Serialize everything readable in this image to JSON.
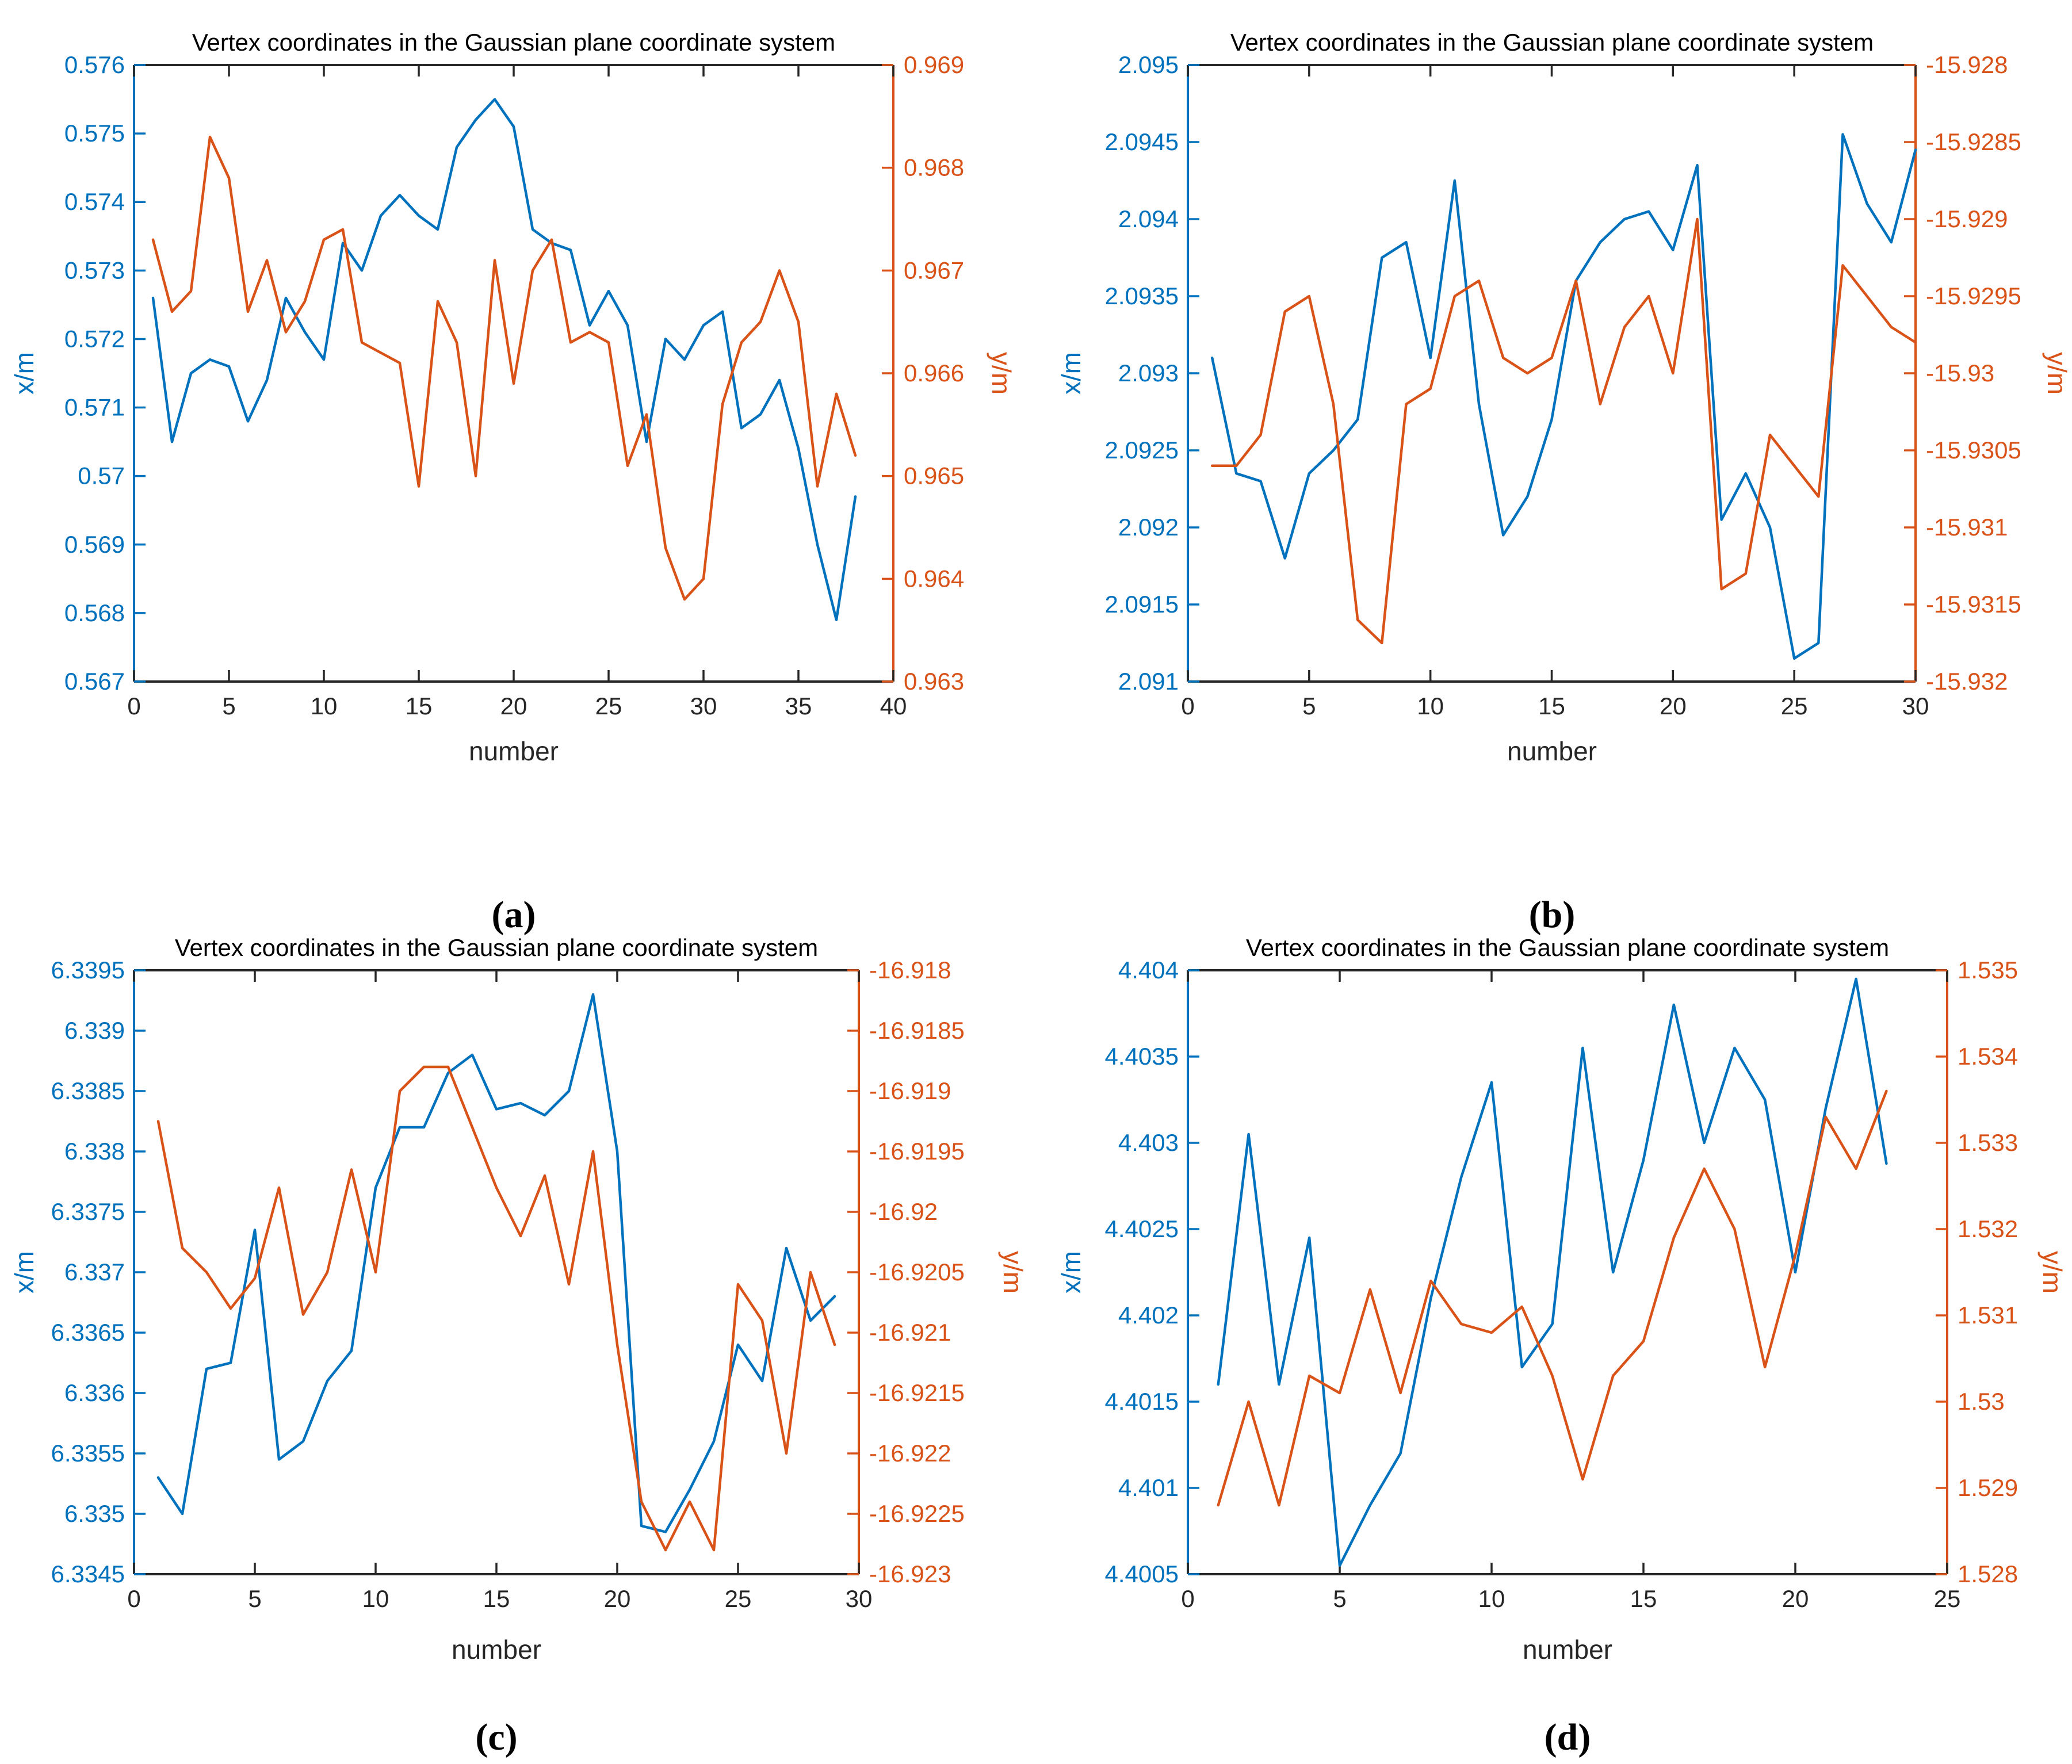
{
  "figure": {
    "colors": {
      "x_series": "#0072BD",
      "y_series": "#D95319",
      "axis": "#262626"
    },
    "shared_title": "Vertex coordinates in the Gaussian plane coordinate system"
  },
  "chart_data": [
    {
      "id": "a",
      "panel_label": "(a)",
      "type": "line",
      "title": "Vertex coordinates in the Gaussian plane coordinate system",
      "xlabel": "number",
      "ylabel_left": "x/m",
      "ylabel_right": "y/m",
      "legend": "none",
      "grid": false,
      "x_range": [
        0,
        40
      ],
      "xticks": [
        "0",
        "5",
        "10",
        "15",
        "20",
        "25",
        "30",
        "35",
        "40"
      ],
      "ylim_left": [
        0.567,
        0.576
      ],
      "yticks_left": [
        "0.567",
        "0.568",
        "0.569",
        "0.57",
        "0.571",
        "0.572",
        "0.573",
        "0.574",
        "0.575",
        "0.576"
      ],
      "ylim_right": [
        0.963,
        0.969
      ],
      "yticks_right": [
        "0.963",
        "0.964",
        "0.965",
        "0.966",
        "0.967",
        "0.968",
        "0.969"
      ],
      "x": [
        1,
        2,
        3,
        4,
        5,
        6,
        7,
        8,
        9,
        10,
        11,
        12,
        13,
        14,
        15,
        16,
        17,
        18,
        19,
        20,
        21,
        22,
        23,
        24,
        25,
        26,
        27,
        28,
        29,
        30,
        31,
        32,
        33,
        34,
        35,
        36,
        37,
        38
      ],
      "series": [
        {
          "name": "x/m",
          "axis": "left",
          "color": "#0072BD",
          "values": [
            0.5726,
            0.5705,
            0.5715,
            0.5717,
            0.5716,
            0.5708,
            0.5714,
            0.5726,
            0.5721,
            0.5717,
            0.5734,
            0.573,
            0.5738,
            0.5741,
            0.5738,
            0.5736,
            0.5748,
            0.5752,
            0.5755,
            0.5751,
            0.5736,
            0.5734,
            0.5733,
            0.5722,
            0.5727,
            0.5722,
            0.5705,
            0.572,
            0.5717,
            0.5722,
            0.5724,
            0.5707,
            0.5709,
            0.5714,
            0.5704,
            0.569,
            0.5679,
            0.5697
          ]
        },
        {
          "name": "y/m",
          "axis": "right",
          "color": "#D95319",
          "values": [
            0.9673,
            0.9666,
            0.9668,
            0.9683,
            0.9679,
            0.9666,
            0.9671,
            0.9664,
            0.9667,
            0.9673,
            0.9674,
            0.9663,
            0.9662,
            0.9661,
            0.9649,
            0.9667,
            0.9663,
            0.965,
            0.9671,
            0.9659,
            0.967,
            0.9673,
            0.9663,
            0.9664,
            0.9663,
            0.9651,
            0.9656,
            0.9643,
            0.9638,
            0.964,
            0.9657,
            0.9663,
            0.9665,
            0.967,
            0.9665,
            0.9649,
            0.9658,
            0.9652
          ]
        }
      ]
    },
    {
      "id": "b",
      "panel_label": "(b)",
      "type": "line",
      "title": "Vertex coordinates in the Gaussian plane coordinate system",
      "xlabel": "number",
      "ylabel_left": "x/m",
      "ylabel_right": "y/m",
      "legend": "none",
      "grid": false,
      "x_range": [
        0,
        30
      ],
      "xticks": [
        "0",
        "5",
        "10",
        "15",
        "20",
        "25",
        "30"
      ],
      "ylim_left": [
        2.091,
        2.095
      ],
      "yticks_left": [
        "2.091",
        "2.0915",
        "2.092",
        "2.0925",
        "2.093",
        "2.0935",
        "2.094",
        "2.0945",
        "2.095"
      ],
      "ylim_right": [
        -15.932,
        -15.928
      ],
      "yticks_right": [
        "-15.932",
        "-15.9315",
        "-15.931",
        "-15.9305",
        "-15.93",
        "-15.9295",
        "-15.929",
        "-15.9285",
        "-15.928"
      ],
      "x": [
        1,
        2,
        3,
        4,
        5,
        6,
        7,
        8,
        9,
        10,
        11,
        12,
        13,
        14,
        15,
        16,
        17,
        18,
        19,
        20,
        21,
        22,
        23,
        24,
        25,
        26,
        27,
        28,
        29,
        30
      ],
      "series": [
        {
          "name": "x/m",
          "axis": "left",
          "color": "#0072BD",
          "values": [
            2.0931,
            2.09235,
            2.0923,
            2.0918,
            2.09235,
            2.0925,
            2.0927,
            2.09375,
            2.09385,
            2.0931,
            2.09425,
            2.0928,
            2.09195,
            2.0922,
            2.0927,
            2.0936,
            2.09385,
            2.094,
            2.09405,
            2.0938,
            2.09435,
            2.09205,
            2.09235,
            2.092,
            2.09115,
            2.09125,
            2.09455,
            2.0941,
            2.09385,
            2.09445
          ]
        },
        {
          "name": "y/m",
          "axis": "right",
          "color": "#D95319",
          "values": [
            -15.9306,
            -15.9306,
            -15.9304,
            -15.9296,
            -15.9295,
            -15.9302,
            -15.9316,
            -15.93175,
            -15.9302,
            -15.9301,
            -15.9295,
            -15.9294,
            -15.9299,
            -15.93,
            -15.9299,
            -15.9294,
            -15.9302,
            -15.9297,
            -15.9295,
            -15.93,
            -15.929,
            -15.9314,
            -15.9313,
            -15.9304,
            -15.9306,
            -15.9308,
            -15.9293,
            -15.9295,
            -15.9297,
            -15.9298
          ]
        }
      ]
    },
    {
      "id": "c",
      "panel_label": "(c)",
      "type": "line",
      "title": "Vertex coordinates in the Gaussian plane coordinate system",
      "xlabel": "number",
      "ylabel_left": "x/m",
      "ylabel_right": "y/m",
      "legend": "none",
      "grid": false,
      "x_range": [
        0,
        30
      ],
      "xticks": [
        "0",
        "5",
        "10",
        "15",
        "20",
        "25",
        "30"
      ],
      "ylim_left": [
        6.3345,
        6.3395
      ],
      "yticks_left": [
        "6.3345",
        "6.335",
        "6.3355",
        "6.336",
        "6.3365",
        "6.337",
        "6.3375",
        "6.338",
        "6.3385",
        "6.339",
        "6.3395"
      ],
      "ylim_right": [
        -16.923,
        -16.918
      ],
      "yticks_right": [
        "-16.923",
        "-16.9225",
        "-16.922",
        "-16.9215",
        "-16.921",
        "-16.9205",
        "-16.92",
        "-16.9195",
        "-16.919",
        "-16.9185",
        "-16.918"
      ],
      "x": [
        1,
        2,
        3,
        4,
        5,
        6,
        7,
        8,
        9,
        10,
        11,
        12,
        13,
        14,
        15,
        16,
        17,
        18,
        19,
        20,
        21,
        22,
        23,
        24,
        25,
        26,
        27,
        28,
        29
      ],
      "series": [
        {
          "name": "x/m",
          "axis": "left",
          "color": "#0072BD",
          "values": [
            6.3353,
            6.335,
            6.3362,
            6.33625,
            6.33735,
            6.33545,
            6.3356,
            6.3361,
            6.33635,
            6.3377,
            6.3382,
            6.3382,
            6.33865,
            6.3388,
            6.33835,
            6.3384,
            6.3383,
            6.3385,
            6.3393,
            6.338,
            6.3349,
            6.33485,
            6.3352,
            6.3356,
            6.3364,
            6.3361,
            6.3372,
            6.3366,
            6.3368
          ]
        },
        {
          "name": "y/m",
          "axis": "right",
          "color": "#D95319",
          "values": [
            -16.91925,
            -16.9203,
            -16.9205,
            -16.9208,
            -16.92055,
            -16.9198,
            -16.92085,
            -16.9205,
            -16.91965,
            -16.9205,
            -16.919,
            -16.9188,
            -16.9188,
            -16.9193,
            -16.9198,
            -16.9202,
            -16.9197,
            -16.9206,
            -16.9195,
            -16.9211,
            -16.9224,
            -16.9228,
            -16.9224,
            -16.9228,
            -16.9206,
            -16.9209,
            -16.922,
            -16.9205,
            -16.9211
          ]
        }
      ]
    },
    {
      "id": "d",
      "panel_label": "(d)",
      "type": "line",
      "title": "Vertex coordinates in the Gaussian plane coordinate system",
      "xlabel": "number",
      "ylabel_left": "x/m",
      "ylabel_right": "y/m",
      "legend": "none",
      "grid": false,
      "x_range": [
        0,
        25
      ],
      "xticks": [
        "0",
        "5",
        "10",
        "15",
        "20",
        "25"
      ],
      "ylim_left": [
        4.4005,
        4.404
      ],
      "yticks_left": [
        "4.4005",
        "4.401",
        "4.4015",
        "4.402",
        "4.4025",
        "4.403",
        "4.4035",
        "4.404"
      ],
      "ylim_right": [
        1.528,
        1.535
      ],
      "yticks_right": [
        "1.528",
        "1.529",
        "1.53",
        "1.531",
        "1.532",
        "1.533",
        "1.534",
        "1.535"
      ],
      "x": [
        1,
        2,
        3,
        4,
        5,
        6,
        7,
        8,
        9,
        10,
        11,
        12,
        13,
        14,
        15,
        16,
        17,
        18,
        19,
        20,
        21,
        22,
        23
      ],
      "series": [
        {
          "name": "x/m",
          "axis": "left",
          "color": "#0072BD",
          "values": [
            4.4016,
            4.40305,
            4.4016,
            4.40245,
            4.40055,
            4.4009,
            4.4012,
            4.4021,
            4.4028,
            4.40335,
            4.4017,
            4.40195,
            4.40355,
            4.40225,
            4.4029,
            4.4038,
            4.403,
            4.40355,
            4.40325,
            4.40225,
            4.4032,
            4.40395,
            4.40288
          ]
        },
        {
          "name": "y/m",
          "axis": "right",
          "color": "#D95319",
          "values": [
            1.5288,
            1.53,
            1.5288,
            1.5303,
            1.5301,
            1.5313,
            1.5301,
            1.5314,
            1.5309,
            1.5308,
            1.5311,
            1.5303,
            1.5291,
            1.5303,
            1.5307,
            1.5319,
            1.5327,
            1.532,
            1.5304,
            1.5317,
            1.5333,
            1.5327,
            1.5336
          ]
        }
      ]
    }
  ]
}
